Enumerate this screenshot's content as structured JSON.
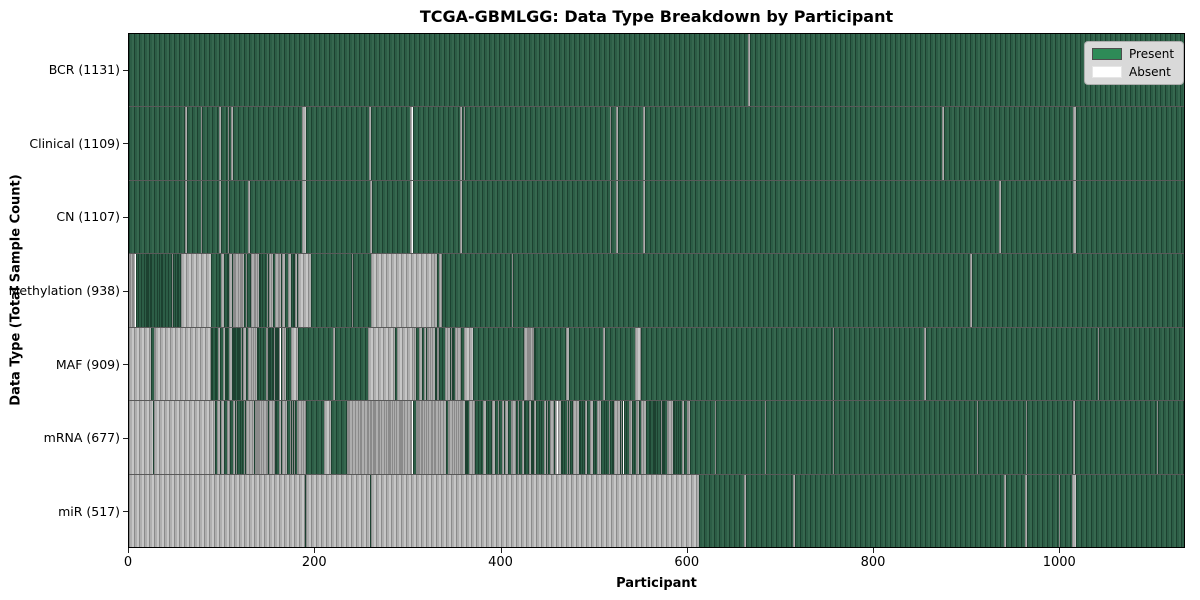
{
  "title": "TCGA-GBMLGG: Data Type Breakdown by Participant",
  "axes": {
    "xlabel": "Participant",
    "ylabel": "Data Type (Total Sample Count)",
    "xticks": [
      0,
      200,
      400,
      600,
      800,
      1000
    ]
  },
  "legend": {
    "items": [
      {
        "label": "Present",
        "color": "#2e8b57",
        "border": "#4d4d4d"
      },
      {
        "label": "Absent",
        "color": "#ffffff",
        "border": "#e6e6e6"
      }
    ]
  },
  "colors": {
    "present_fill": "#2c5d46",
    "present_edge": "#1c4130",
    "absent_fill": "#c6c6c6",
    "absent_edge": "#8a8a8a",
    "spine": "#000000",
    "legend_bg": "#d9d9d9"
  },
  "chart_data": {
    "type": "heatmap",
    "title": "TCGA-GBMLGG: Data Type Breakdown by Participant",
    "xlabel": "Participant",
    "ylabel": "Data Type (Total Sample Count)",
    "x_range": [
      0,
      1135
    ],
    "xticks": [
      0,
      200,
      400,
      600,
      800,
      1000
    ],
    "legend": [
      "Present",
      "Absent"
    ],
    "grid": false,
    "legend_position": "upper right",
    "rows": [
      {
        "label": "BCR (1131)",
        "data_type": "BCR",
        "total_sample_count": 1131,
        "segments": [
          [
            0,
            666,
            "p"
          ],
          [
            666,
            668,
            "a"
          ],
          [
            668,
            1135,
            "p"
          ]
        ]
      },
      {
        "label": "Clinical (1109)",
        "data_type": "Clinical",
        "total_sample_count": 1109,
        "segments": [
          [
            0,
            60,
            "p"
          ],
          [
            60,
            62,
            "a"
          ],
          [
            62,
            77,
            "p"
          ],
          [
            77,
            79,
            "a"
          ],
          [
            79,
            97,
            "p"
          ],
          [
            97,
            99,
            "a"
          ],
          [
            99,
            106,
            "p"
          ],
          [
            106,
            108,
            "a"
          ],
          [
            108,
            110,
            "p"
          ],
          [
            110,
            112,
            "a"
          ],
          [
            112,
            186,
            "p"
          ],
          [
            186,
            190,
            "a"
          ],
          [
            190,
            258,
            "p"
          ],
          [
            258,
            260,
            "a"
          ],
          [
            260,
            302,
            "p"
          ],
          [
            302,
            305,
            "a"
          ],
          [
            305,
            356,
            "p"
          ],
          [
            356,
            358,
            "a"
          ],
          [
            358,
            360,
            "p"
          ],
          [
            360,
            362,
            "a"
          ],
          [
            362,
            517,
            "p"
          ],
          [
            517,
            519,
            "a"
          ],
          [
            519,
            524,
            "p"
          ],
          [
            524,
            526,
            "a"
          ],
          [
            526,
            553,
            "p"
          ],
          [
            553,
            555,
            "a"
          ],
          [
            555,
            875,
            "p"
          ],
          [
            875,
            877,
            "a"
          ],
          [
            877,
            1016,
            "p"
          ],
          [
            1016,
            1019,
            "a"
          ],
          [
            1019,
            1135,
            "p"
          ]
        ]
      },
      {
        "label": "CN (1107)",
        "data_type": "CN",
        "total_sample_count": 1107,
        "segments": [
          [
            0,
            60,
            "p"
          ],
          [
            60,
            62,
            "a"
          ],
          [
            62,
            77,
            "p"
          ],
          [
            77,
            79,
            "a"
          ],
          [
            79,
            97,
            "p"
          ],
          [
            97,
            99,
            "a"
          ],
          [
            99,
            106,
            "p"
          ],
          [
            106,
            108,
            "a"
          ],
          [
            108,
            128,
            "p"
          ],
          [
            128,
            130,
            "a"
          ],
          [
            130,
            186,
            "p"
          ],
          [
            186,
            190,
            "a"
          ],
          [
            190,
            259,
            "p"
          ],
          [
            259,
            261,
            "a"
          ],
          [
            261,
            302,
            "p"
          ],
          [
            302,
            305,
            "a"
          ],
          [
            305,
            356,
            "p"
          ],
          [
            356,
            358,
            "a"
          ],
          [
            358,
            517,
            "p"
          ],
          [
            517,
            519,
            "a"
          ],
          [
            519,
            524,
            "p"
          ],
          [
            524,
            526,
            "a"
          ],
          [
            526,
            553,
            "p"
          ],
          [
            553,
            555,
            "a"
          ],
          [
            555,
            936,
            "p"
          ],
          [
            936,
            938,
            "a"
          ],
          [
            938,
            1016,
            "p"
          ],
          [
            1016,
            1019,
            "a"
          ],
          [
            1019,
            1135,
            "p"
          ]
        ]
      },
      {
        "label": "Methylation (938)",
        "data_type": "Methylation",
        "total_sample_count": 938,
        "segments": [
          [
            0,
            20,
            "m",
            0.55
          ],
          [
            20,
            56,
            "m",
            0.85
          ],
          [
            56,
            88,
            "a"
          ],
          [
            88,
            97,
            "p"
          ],
          [
            97,
            117,
            "m",
            0.5
          ],
          [
            117,
            182,
            "m",
            0.3
          ],
          [
            182,
            196,
            "a"
          ],
          [
            196,
            240,
            "p"
          ],
          [
            240,
            241,
            "a"
          ],
          [
            241,
            260,
            "p"
          ],
          [
            260,
            328,
            "a"
          ],
          [
            328,
            340,
            "m",
            0.8
          ],
          [
            340,
            412,
            "p"
          ],
          [
            412,
            413,
            "a"
          ],
          [
            413,
            905,
            "p"
          ],
          [
            905,
            907,
            "a"
          ],
          [
            907,
            1135,
            "p"
          ]
        ]
      },
      {
        "label": "MAF (909)",
        "data_type": "MAF",
        "total_sample_count": 909,
        "segments": [
          [
            0,
            24,
            "a"
          ],
          [
            24,
            28,
            "m",
            0.5
          ],
          [
            28,
            88,
            "a"
          ],
          [
            88,
            128,
            "m",
            0.65
          ],
          [
            128,
            171,
            "m",
            0.55
          ],
          [
            171,
            174,
            "p"
          ],
          [
            174,
            182,
            "a"
          ],
          [
            182,
            220,
            "p"
          ],
          [
            220,
            222,
            "a"
          ],
          [
            222,
            257,
            "p"
          ],
          [
            257,
            286,
            "a"
          ],
          [
            286,
            288,
            "p"
          ],
          [
            288,
            307,
            "a"
          ],
          [
            307,
            357,
            "m",
            0.5
          ],
          [
            357,
            360,
            "p"
          ],
          [
            360,
            370,
            "a"
          ],
          [
            370,
            424,
            "p"
          ],
          [
            424,
            437,
            "m",
            0.35
          ],
          [
            437,
            470,
            "p"
          ],
          [
            470,
            473,
            "a"
          ],
          [
            473,
            510,
            "p"
          ],
          [
            510,
            512,
            "a"
          ],
          [
            512,
            544,
            "p"
          ],
          [
            544,
            551,
            "a"
          ],
          [
            551,
            757,
            "p"
          ],
          [
            757,
            758,
            "a"
          ],
          [
            758,
            855,
            "p"
          ],
          [
            855,
            857,
            "a"
          ],
          [
            857,
            1042,
            "p"
          ],
          [
            1042,
            1044,
            "a"
          ],
          [
            1044,
            1135,
            "p"
          ]
        ]
      },
      {
        "label": "mRNA (677)",
        "data_type": "mRNA",
        "total_sample_count": 677,
        "segments": [
          [
            0,
            26,
            "a"
          ],
          [
            26,
            27,
            "p"
          ],
          [
            27,
            90,
            "a"
          ],
          [
            90,
            125,
            "m",
            0.35
          ],
          [
            125,
            190,
            "m",
            0.2
          ],
          [
            190,
            210,
            "p"
          ],
          [
            210,
            217,
            "a"
          ],
          [
            217,
            235,
            "p"
          ],
          [
            235,
            357,
            "m",
            0.13
          ],
          [
            357,
            372,
            "m",
            0.6
          ],
          [
            372,
            604,
            "m",
            0.47
          ],
          [
            604,
            630,
            "p"
          ],
          [
            630,
            631,
            "a"
          ],
          [
            631,
            684,
            "p"
          ],
          [
            684,
            685,
            "a"
          ],
          [
            685,
            757,
            "p"
          ],
          [
            757,
            758,
            "a"
          ],
          [
            758,
            912,
            "p"
          ],
          [
            912,
            913,
            "a"
          ],
          [
            913,
            965,
            "p"
          ],
          [
            965,
            966,
            "a"
          ],
          [
            966,
            1016,
            "p"
          ],
          [
            1016,
            1018,
            "a"
          ],
          [
            1018,
            1106,
            "p"
          ],
          [
            1106,
            1107,
            "a"
          ],
          [
            1107,
            1135,
            "p"
          ]
        ]
      },
      {
        "label": "miR (517)",
        "data_type": "miR",
        "total_sample_count": 517,
        "segments": [
          [
            0,
            189,
            "a"
          ],
          [
            189,
            190,
            "p"
          ],
          [
            190,
            259,
            "a"
          ],
          [
            259,
            260,
            "p"
          ],
          [
            260,
            613,
            "a"
          ],
          [
            613,
            662,
            "p"
          ],
          [
            662,
            664,
            "a"
          ],
          [
            664,
            714,
            "p"
          ],
          [
            714,
            716,
            "a"
          ],
          [
            716,
            941,
            "p"
          ],
          [
            941,
            943,
            "a"
          ],
          [
            943,
            964,
            "p"
          ],
          [
            964,
            966,
            "a"
          ],
          [
            966,
            1000,
            "p"
          ],
          [
            1000,
            1002,
            "a"
          ],
          [
            1002,
            1015,
            "p"
          ],
          [
            1015,
            1019,
            "a"
          ],
          [
            1019,
            1135,
            "p"
          ]
        ]
      }
    ]
  }
}
